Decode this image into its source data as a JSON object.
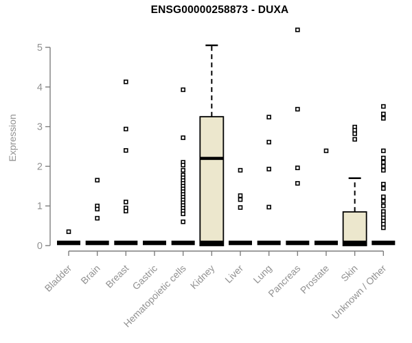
{
  "title": "ENSG00000258873 - DUXA",
  "colors": {
    "axis": "#7d7d7d",
    "tick_text": "#919191",
    "box_fill": "#ece7cd",
    "box_stroke": "#000000",
    "point_stroke": "#000000",
    "title_color": "#000000"
  },
  "chart_data": {
    "type": "box",
    "title": "ENSG00000258873 - DUXA",
    "xlabel": "",
    "ylabel": "Expression",
    "ylim": [
      0,
      5
    ],
    "yticks": [
      0,
      1,
      2,
      3,
      4,
      5
    ],
    "grid": false,
    "legend": false,
    "categories": [
      "Bladder",
      "Brain",
      "Breast",
      "Gastric",
      "Hematopoietic cells",
      "Kidney",
      "Liver",
      "Lung",
      "Pancreas",
      "Prostate",
      "Skin",
      "Unknown / Other"
    ],
    "series": [
      {
        "category": "Bladder",
        "q1": 0,
        "median": 0,
        "q3": 0,
        "whisker_low": 0,
        "whisker_high": 0,
        "outliers": [
          0.35
        ]
      },
      {
        "category": "Brain",
        "q1": 0,
        "median": 0,
        "q3": 0,
        "whisker_low": 0,
        "whisker_high": 0,
        "outliers": [
          1.65,
          1.0,
          0.92,
          0.69
        ]
      },
      {
        "category": "Breast",
        "q1": 0,
        "median": 0,
        "q3": 0,
        "whisker_low": 0,
        "whisker_high": 0,
        "outliers": [
          4.13,
          2.94,
          2.4,
          1.1,
          0.95,
          0.87
        ]
      },
      {
        "category": "Gastric",
        "q1": 0,
        "median": 0,
        "q3": 0,
        "whisker_low": 0,
        "whisker_high": 0,
        "outliers": []
      },
      {
        "category": "Hematopoietic cells",
        "q1": 0,
        "median": 0,
        "q3": 0,
        "whisker_low": 0,
        "whisker_high": 0,
        "outliers": [
          3.93,
          2.72,
          2.1,
          2.03,
          1.9,
          1.78,
          1.71,
          1.64,
          1.57,
          1.5,
          1.43,
          1.36,
          1.29,
          1.22,
          1.15,
          1.08,
          1.01,
          0.94,
          0.87,
          0.8,
          0.6
        ]
      },
      {
        "category": "Kidney",
        "q1": 0,
        "median": 2.2,
        "q3": 3.25,
        "whisker_low": 0,
        "whisker_high": 5.05,
        "outliers": []
      },
      {
        "category": "Liver",
        "q1": 0,
        "median": 0,
        "q3": 0,
        "whisker_low": 0,
        "whisker_high": 0,
        "outliers": [
          1.9,
          1.26,
          1.16,
          0.96
        ]
      },
      {
        "category": "Lung",
        "q1": 0,
        "median": 0,
        "q3": 0,
        "whisker_low": 0,
        "whisker_high": 0,
        "outliers": [
          3.24,
          2.61,
          1.93,
          0.97
        ]
      },
      {
        "category": "Pancreas",
        "q1": 0,
        "median": 0,
        "q3": 0,
        "whisker_low": 0,
        "whisker_high": 0,
        "outliers": [
          5.44,
          3.44,
          1.96,
          1.57
        ]
      },
      {
        "category": "Prostate",
        "q1": 0,
        "median": 0,
        "q3": 0,
        "whisker_low": 0,
        "whisker_high": 0,
        "outliers": [
          2.39
        ]
      },
      {
        "category": "Skin",
        "q1": 0,
        "median": 0,
        "q3": 0.85,
        "whisker_low": 0,
        "whisker_high": 1.7,
        "outliers": [
          2.99,
          2.91,
          2.82,
          2.68
        ]
      },
      {
        "category": "Unknown / Other",
        "q1": 0,
        "median": 0,
        "q3": 0,
        "whisker_low": 0,
        "whisker_high": 0,
        "outliers": [
          3.51,
          3.32,
          3.21,
          2.39,
          2.21,
          2.1,
          2.0,
          1.9,
          1.55,
          1.44,
          1.23,
          1.12,
          1.0,
          0.86,
          0.78,
          0.7,
          0.62,
          0.54,
          0.45
        ]
      }
    ]
  }
}
